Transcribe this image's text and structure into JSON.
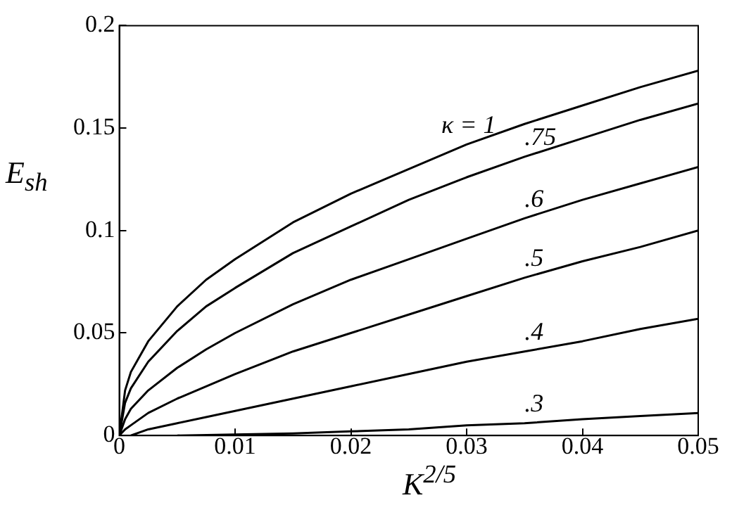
{
  "chart_data": {
    "type": "line",
    "xlabel": "K$^{2/5}$",
    "ylabel": "E$_{sh}$",
    "x": [
      0,
      0.0005,
      0.001,
      0.0025,
      0.005,
      0.0075,
      0.01,
      0.015,
      0.02,
      0.025,
      0.03,
      0.035,
      0.04,
      0.045,
      0.05
    ],
    "series": [
      {
        "name": "κ = 1",
        "color": "#000000",
        "values": [
          0,
          0.022,
          0.031,
          0.046,
          0.063,
          0.076,
          0.086,
          0.104,
          0.118,
          0.13,
          0.142,
          0.152,
          0.161,
          0.17,
          0.178
        ]
      },
      {
        "name": ".75",
        "color": "#000000",
        "values": [
          0,
          0.016,
          0.023,
          0.036,
          0.051,
          0.063,
          0.072,
          0.089,
          0.102,
          0.115,
          0.126,
          0.136,
          0.145,
          0.154,
          0.162
        ]
      },
      {
        "name": ".6",
        "color": "#000000",
        "values": [
          0,
          0.008,
          0.013,
          0.022,
          0.033,
          0.042,
          0.05,
          0.064,
          0.076,
          0.086,
          0.096,
          0.106,
          0.115,
          0.123,
          0.131
        ]
      },
      {
        "name": ".5",
        "color": "#000000",
        "values": [
          0,
          0.003,
          0.005,
          0.011,
          0.018,
          0.024,
          0.03,
          0.041,
          0.05,
          0.059,
          0.068,
          0.077,
          0.085,
          0.092,
          0.1
        ]
      },
      {
        "name": ".4",
        "color": "#000000",
        "x": [
          0.001,
          0.0025,
          0.005,
          0.0075,
          0.01,
          0.015,
          0.02,
          0.025,
          0.03,
          0.035,
          0.04,
          0.045,
          0.05
        ],
        "values": [
          0,
          0.003,
          0.006,
          0.009,
          0.012,
          0.018,
          0.024,
          0.03,
          0.036,
          0.041,
          0.046,
          0.052,
          0.057
        ]
      },
      {
        "name": ".3",
        "color": "#000000",
        "x": [
          0.005,
          0.01,
          0.015,
          0.02,
          0.025,
          0.03,
          0.035,
          0.04,
          0.045,
          0.05
        ],
        "values": [
          0,
          0.0005,
          0.001,
          0.002,
          0.003,
          0.005,
          0.006,
          0.008,
          0.0095,
          0.011
        ]
      }
    ],
    "xlim": [
      0,
      0.05
    ],
    "xticks": [
      0,
      0.01,
      0.02,
      0.03,
      0.04,
      0.05
    ],
    "ylim": [
      0,
      0.2
    ],
    "yticks": [
      0,
      0.05,
      0.1,
      0.15,
      0.2
    ],
    "grid": false,
    "legend": false,
    "marker": "none",
    "line_style": "solid"
  }
}
